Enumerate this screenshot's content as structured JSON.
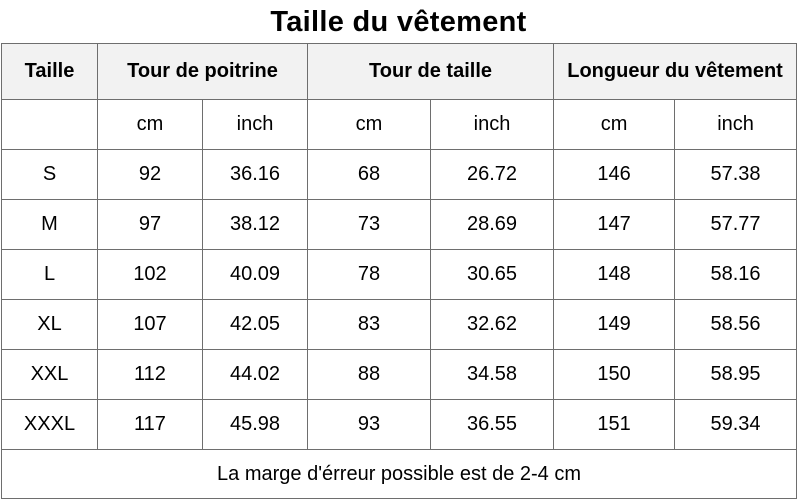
{
  "title": "Taille du vêtement",
  "headers": {
    "size": "Taille",
    "chest": "Tour de poitrine",
    "waist": "Tour de taille",
    "length": "Longueur du vêtement"
  },
  "units": [
    "cm",
    "inch",
    "cm",
    "inch",
    "cm",
    "inch"
  ],
  "rows": [
    [
      "S",
      "92",
      "36.16",
      "68",
      "26.72",
      "146",
      "57.38"
    ],
    [
      "M",
      "97",
      "38.12",
      "73",
      "28.69",
      "147",
      "57.77"
    ],
    [
      "L",
      "102",
      "40.09",
      "78",
      "30.65",
      "148",
      "58.16"
    ],
    [
      "XL",
      "107",
      "42.05",
      "83",
      "32.62",
      "149",
      "58.56"
    ],
    [
      "XXL",
      "112",
      "44.02",
      "88",
      "34.58",
      "150",
      "58.95"
    ],
    [
      "XXXL",
      "117",
      "45.98",
      "93",
      "36.55",
      "151",
      "59.34"
    ]
  ],
  "note": "La marge d'érreur possible est de 2-4 cm"
}
